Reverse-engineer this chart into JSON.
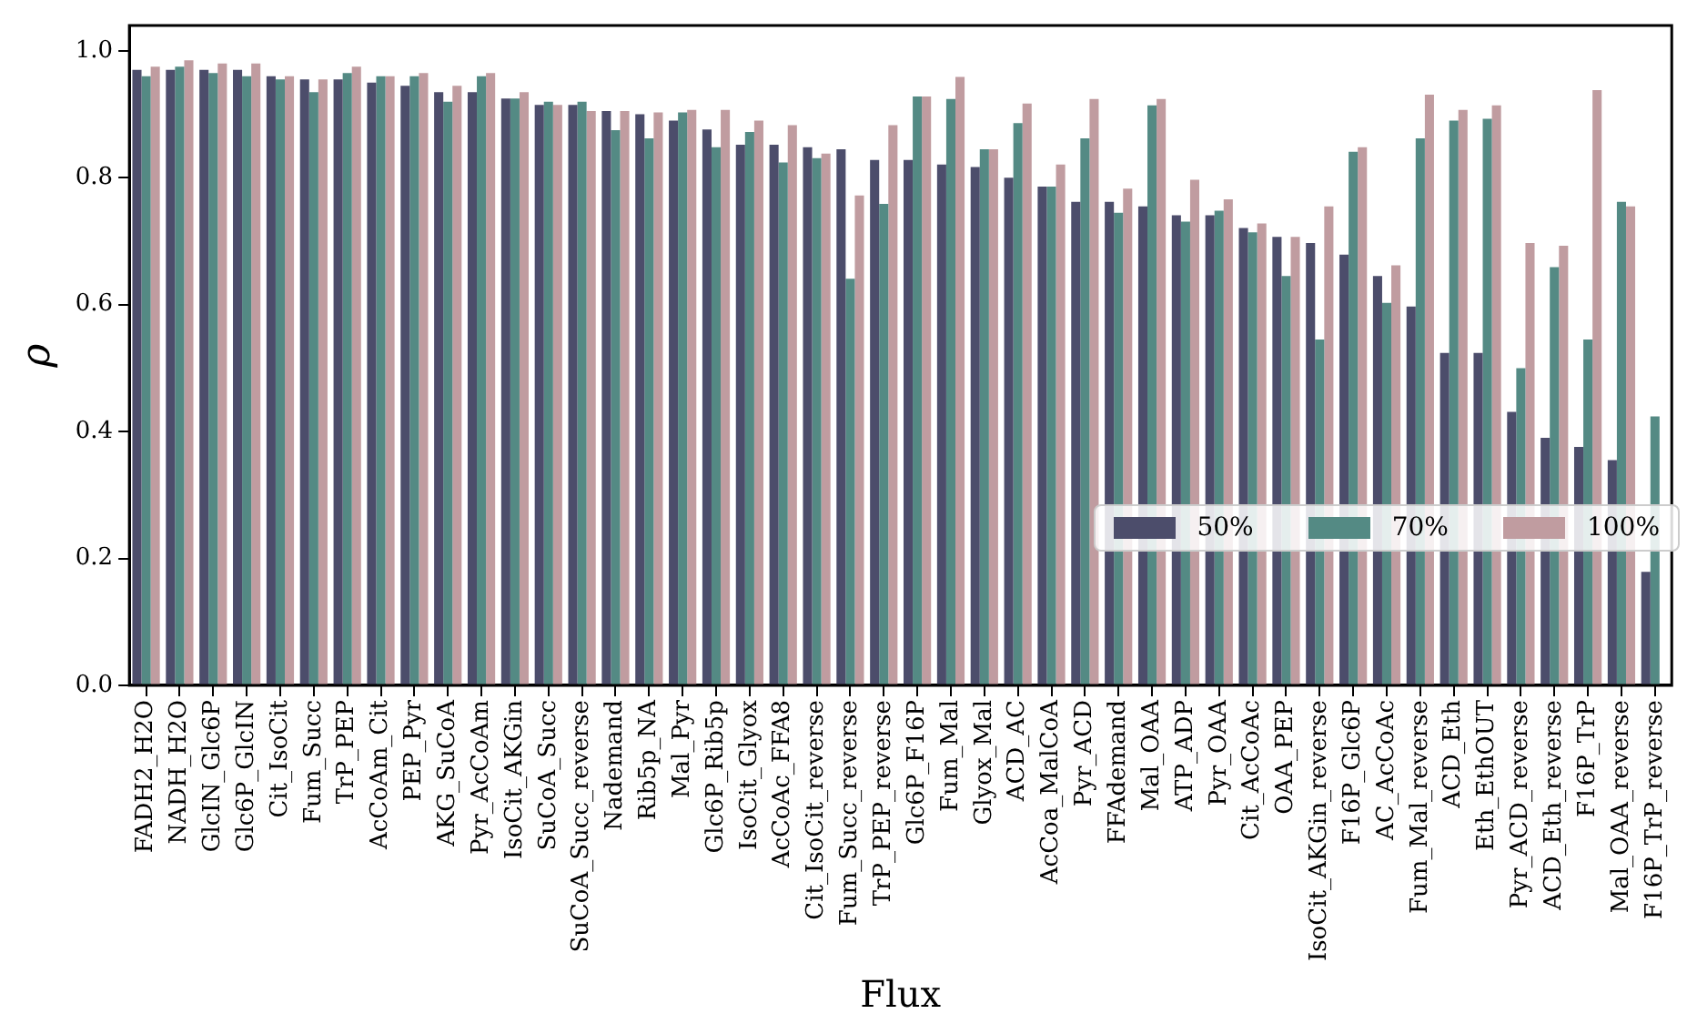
{
  "chart_data": {
    "type": "bar",
    "xlabel": "Flux",
    "ylabel": "ρ",
    "categories": [
      "FADH2_H2O",
      "NADH_H2O",
      "GlcIN_Glc6P",
      "Glc6P_GlcIN",
      "Cit_IsoCit",
      "Fum_Succ",
      "TrP_PEP",
      "AcCoAm_Cit",
      "PEP_Pyr",
      "AKG_SuCoA",
      "Pyr_AcCoAm",
      "IsoCit_AKGin",
      "SuCoA_Succ",
      "SuCoA_Succ_reverse",
      "Nademand",
      "Rib5p_NA",
      "Mal_Pyr",
      "Glc6P_Rib5p",
      "IsoCit_Glyox",
      "AcCoAc_FFA8",
      "Cit_IsoCit_reverse",
      "Fum_Succ_reverse",
      "TrP_PEP_reverse",
      "Glc6P_F16P",
      "Fum_Mal",
      "Glyox_Mal",
      "ACD_AC",
      "AcCoa_MalCoA",
      "Pyr_ACD",
      "FFAdemand",
      "Mal_OAA",
      "ATP_ADP",
      "Pyr_OAA",
      "Cit_AcCoAc",
      "OAA_PEP",
      "IsoCit_AKGin_reverse",
      "F16P_Glc6P",
      "AC_AcCoAc",
      "Fum_Mal_reverse",
      "ACD_Eth",
      "Eth_EthOUT",
      "Pyr_ACD_reverse",
      "ACD_Eth_reverse",
      "F16P_TrP",
      "Mal_OAA_reverse",
      "F16P_TrP_reverse"
    ],
    "series": [
      {
        "name": "50%",
        "color": "#4c4d6b",
        "values": [
          0.97,
          0.97,
          0.97,
          0.97,
          0.96,
          0.955,
          0.955,
          0.95,
          0.945,
          0.935,
          0.935,
          0.925,
          0.915,
          0.915,
          0.905,
          0.9,
          0.89,
          0.876,
          0.852,
          0.852,
          0.848,
          0.845,
          0.828,
          0.828,
          0.821,
          0.817,
          0.8,
          0.786,
          0.762,
          0.762,
          0.755,
          0.741,
          0.741,
          0.721,
          0.707,
          0.697,
          0.679,
          0.645,
          0.597,
          0.524,
          0.524,
          0.431,
          0.39,
          0.376,
          0.355,
          0.179
        ]
      },
      {
        "name": "70%",
        "color": "#548a84",
        "values": [
          0.96,
          0.975,
          0.965,
          0.96,
          0.955,
          0.935,
          0.965,
          0.96,
          0.96,
          0.92,
          0.96,
          0.925,
          0.92,
          0.92,
          0.875,
          0.862,
          0.903,
          0.848,
          0.872,
          0.824,
          0.831,
          0.641,
          0.759,
          0.928,
          0.924,
          0.845,
          0.886,
          0.786,
          0.862,
          0.745,
          0.914,
          0.731,
          0.748,
          0.714,
          0.645,
          0.545,
          0.841,
          0.603,
          0.862,
          0.89,
          0.893,
          0.5,
          0.659,
          0.545,
          0.762,
          0.424
        ]
      },
      {
        "name": "100%",
        "color": "#c09ca0",
        "values": [
          0.975,
          0.985,
          0.98,
          0.98,
          0.96,
          0.955,
          0.975,
          0.96,
          0.965,
          0.945,
          0.965,
          0.935,
          0.915,
          0.905,
          0.905,
          0.903,
          0.907,
          0.907,
          0.89,
          0.883,
          0.838,
          0.772,
          0.883,
          0.928,
          0.959,
          0.845,
          0.917,
          0.821,
          0.924,
          0.783,
          0.924,
          0.797,
          0.766,
          0.728,
          0.707,
          0.755,
          0.848,
          0.662,
          0.931,
          0.907,
          0.914,
          0.697,
          0.693,
          0.938,
          0.755,
          null
        ]
      }
    ],
    "ylim": [
      0,
      1.04
    ],
    "yticks": [
      {
        "value": 0,
        "label": "0.0"
      },
      {
        "value": 0.2,
        "label": "0.2"
      },
      {
        "value": 0.4,
        "label": "0.4"
      },
      {
        "value": 0.6,
        "label": "0.6"
      },
      {
        "value": 0.8,
        "label": "0.8"
      },
      {
        "value": 1,
        "label": "1.0"
      }
    ],
    "grid": false,
    "legend": "bottom right"
  }
}
